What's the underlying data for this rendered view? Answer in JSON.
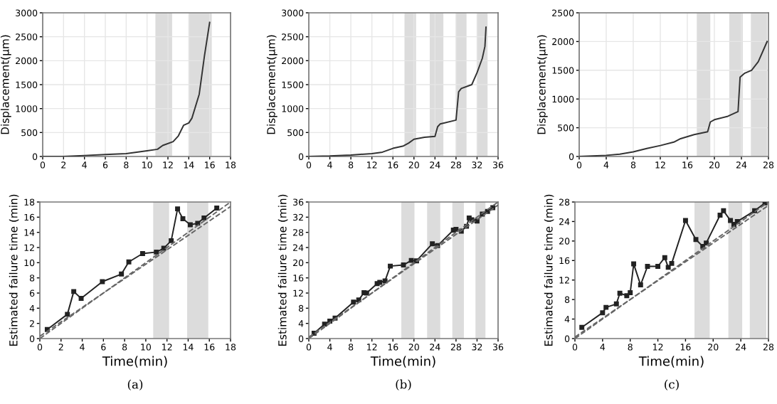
{
  "chart_data": [
    {
      "type": "line",
      "ylabel": "Displacement(μm)",
      "xlim": [
        0,
        18
      ],
      "ylim": [
        0,
        3000
      ],
      "xticks": [
        0,
        2,
        4,
        6,
        8,
        10,
        12,
        14,
        16,
        18
      ],
      "yticks": [
        0,
        500,
        1000,
        1500,
        2000,
        2500,
        3000
      ],
      "grid": true,
      "marker": "none",
      "line_style": "solid",
      "bands": [
        {
          "axis": "x",
          "from": 10.8,
          "to": 12.4,
          "color": "#dcdcdc"
        },
        {
          "axis": "x",
          "from": 14,
          "to": 16.2,
          "color": "#dcdcdc"
        }
      ],
      "series": [
        {
          "color": "#333333",
          "x": [
            0,
            2,
            4,
            6,
            8,
            9,
            10,
            11,
            11.5,
            12.5,
            13,
            13.5,
            14,
            14.3,
            15,
            15.5,
            16
          ],
          "values": [
            0,
            0,
            20,
            40,
            60,
            90,
            120,
            150,
            230,
            310,
            430,
            650,
            700,
            800,
            1300,
            2100,
            2800
          ]
        }
      ]
    },
    {
      "type": "line",
      "ylabel": "Displacement(μm)",
      "xlim": [
        0,
        36
      ],
      "ylim": [
        0,
        3000
      ],
      "xticks": [
        0,
        4,
        8,
        12,
        16,
        20,
        24,
        28,
        32,
        36
      ],
      "yticks": [
        0,
        500,
        1000,
        1500,
        2000,
        2500,
        3000
      ],
      "grid": true,
      "marker": "none",
      "line_style": "solid",
      "bands": [
        {
          "axis": "x",
          "from": 18.2,
          "to": 20.4,
          "color": "#dcdcdc"
        },
        {
          "axis": "x",
          "from": 23,
          "to": 25.6,
          "color": "#dcdcdc"
        },
        {
          "axis": "x",
          "from": 28,
          "to": 30,
          "color": "#dcdcdc"
        },
        {
          "axis": "x",
          "from": 32,
          "to": 34,
          "color": "#dcdcdc"
        }
      ],
      "series": [
        {
          "color": "#333333",
          "x": [
            0,
            4,
            8,
            12,
            14,
            16,
            18,
            19,
            20,
            22,
            24,
            24.5,
            25,
            28,
            28.5,
            29,
            31,
            32,
            33,
            33.5,
            33.7
          ],
          "values": [
            0,
            10,
            30,
            60,
            90,
            170,
            220,
            280,
            360,
            400,
            420,
            620,
            680,
            760,
            1350,
            1420,
            1500,
            1750,
            2050,
            2300,
            2700
          ]
        }
      ]
    },
    {
      "type": "line",
      "ylabel": "Displacement(μm)",
      "xlim": [
        0,
        28
      ],
      "ylim": [
        0,
        2500
      ],
      "xticks": [
        0,
        4,
        8,
        12,
        16,
        20,
        24,
        28
      ],
      "yticks": [
        0,
        500,
        1000,
        1500,
        2000,
        2500
      ],
      "grid": true,
      "marker": "none",
      "line_style": "solid",
      "bands": [
        {
          "axis": "x",
          "from": 17.4,
          "to": 19.4,
          "color": "#dcdcdc"
        },
        {
          "axis": "x",
          "from": 22.2,
          "to": 24.2,
          "color": "#dcdcdc"
        },
        {
          "axis": "x",
          "from": 25.4,
          "to": 27.8,
          "color": "#dcdcdc"
        }
      ],
      "series": [
        {
          "color": "#333333",
          "x": [
            0,
            4,
            6,
            8,
            10,
            12,
            14,
            15,
            17,
            19,
            19.4,
            20,
            22,
            23.5,
            23.8,
            24.5,
            25.5,
            26.5,
            27.8
          ],
          "values": [
            0,
            20,
            40,
            80,
            140,
            190,
            250,
            310,
            380,
            430,
            600,
            640,
            700,
            780,
            1380,
            1450,
            1500,
            1650,
            2000
          ]
        }
      ]
    },
    {
      "type": "line",
      "xlabel": "Time(min)",
      "ylabel": "Estimated failure time (min)",
      "annotations": [
        "(a)"
      ],
      "xlim": [
        0,
        18
      ],
      "ylim": [
        0,
        18
      ],
      "xticks": [
        0,
        2,
        4,
        6,
        8,
        10,
        12,
        14,
        16,
        18
      ],
      "yticks": [
        0,
        2,
        4,
        6,
        8,
        10,
        12,
        14,
        16,
        18
      ],
      "bands": [
        {
          "axis": "x",
          "from": 10.7,
          "to": 12.2,
          "color": "#dcdcdc"
        },
        {
          "axis": "x",
          "from": 13.9,
          "to": 15.9,
          "color": "#dcdcdc"
        }
      ],
      "series": [
        {
          "color": "#222222",
          "marker": "square",
          "line_style": "solid",
          "x": [
            0.7,
            2.6,
            3.2,
            3.9,
            5.9,
            7.7,
            8.4,
            9.7,
            11,
            11.7,
            12.4,
            13,
            13.5,
            14.2,
            14.9,
            15.5,
            16.7
          ],
          "values": [
            1.2,
            3.2,
            6.2,
            5.3,
            7.5,
            8.5,
            10.1,
            11.2,
            11.4,
            11.9,
            12.9,
            17.1,
            15.8,
            15,
            15.2,
            15.9,
            17.2
          ]
        },
        {
          "color": "#666666",
          "marker": "none",
          "line_style": "dashed",
          "x": [
            0,
            18
          ],
          "values": [
            0,
            18
          ]
        },
        {
          "color": "#666666",
          "marker": "none",
          "line_style": "dashed",
          "x": [
            0,
            18
          ],
          "values": [
            0.3,
            17.4
          ]
        }
      ]
    },
    {
      "type": "line",
      "xlabel": "Time(min)",
      "ylabel": "Estimated failure time (min)",
      "annotations": [
        "(b)"
      ],
      "xlim": [
        0,
        36
      ],
      "ylim": [
        0,
        36
      ],
      "xticks": [
        0,
        4,
        8,
        12,
        16,
        20,
        24,
        28,
        32,
        36
      ],
      "yticks": [
        0,
        4,
        8,
        12,
        16,
        20,
        24,
        28,
        32,
        36
      ],
      "bands": [
        {
          "axis": "x",
          "from": 17.6,
          "to": 20.1,
          "color": "#dcdcdc"
        },
        {
          "axis": "x",
          "from": 22.5,
          "to": 25,
          "color": "#dcdcdc"
        },
        {
          "axis": "x",
          "from": 27.3,
          "to": 29.5,
          "color": "#dcdcdc"
        },
        {
          "axis": "x",
          "from": 31.7,
          "to": 33.6,
          "color": "#dcdcdc"
        }
      ],
      "series": [
        {
          "color": "#222222",
          "marker": "square",
          "line_style": "solid",
          "x": [
            1,
            3,
            4,
            5,
            8.5,
            9.5,
            10.5,
            11,
            13,
            13.5,
            14.5,
            15.5,
            18,
            19.5,
            20.5,
            23.5,
            24.5,
            27.5,
            28,
            29,
            30,
            30.5,
            31,
            32,
            33,
            34,
            35
          ],
          "values": [
            1.4,
            3.8,
            4.6,
            5.4,
            9.6,
            10.2,
            12.1,
            12,
            14.5,
            14.8,
            15.2,
            19.1,
            19.4,
            20.6,
            20.5,
            25,
            24.5,
            28.6,
            28.8,
            28.3,
            29.6,
            31.8,
            31.3,
            31,
            32.8,
            33.5,
            34.5
          ]
        },
        {
          "color": "#666666",
          "marker": "none",
          "line_style": "dashed",
          "x": [
            0,
            36
          ],
          "values": [
            0,
            36
          ]
        },
        {
          "color": "#666666",
          "marker": "none",
          "line_style": "dashed",
          "x": [
            0,
            36
          ],
          "values": [
            0.4,
            35.2
          ]
        }
      ]
    },
    {
      "type": "line",
      "xlabel": "Time(min)",
      "ylabel": "Estimated failure time (min)",
      "annotations": [
        "(c)"
      ],
      "xlim": [
        0,
        28
      ],
      "ylim": [
        0,
        28
      ],
      "xticks": [
        0,
        4,
        8,
        12,
        16,
        20,
        24,
        28
      ],
      "yticks": [
        0,
        4,
        8,
        12,
        16,
        20,
        24,
        28
      ],
      "bands": [
        {
          "axis": "x",
          "from": 17.3,
          "to": 19.5,
          "color": "#dcdcdc"
        },
        {
          "axis": "x",
          "from": 22.2,
          "to": 24.2,
          "color": "#dcdcdc"
        },
        {
          "axis": "x",
          "from": 25.3,
          "to": 27.7,
          "color": "#dcdcdc"
        }
      ],
      "series": [
        {
          "color": "#222222",
          "marker": "square",
          "line_style": "solid",
          "x": [
            1,
            4,
            4.5,
            6,
            6.5,
            7.5,
            8,
            8.5,
            9.5,
            10.5,
            12,
            13,
            13.5,
            14,
            16,
            17.5,
            18.5,
            19,
            21,
            21.5,
            22.5,
            23,
            23.5,
            26,
            27.5
          ],
          "values": [
            2.3,
            5.3,
            6.4,
            7.1,
            9.3,
            8.8,
            9.4,
            15.3,
            11,
            14.8,
            14.8,
            16.6,
            14.6,
            15.4,
            24.2,
            20.3,
            18.9,
            19.6,
            25.3,
            26.2,
            24.2,
            23.4,
            24,
            26.2,
            27.8
          ]
        },
        {
          "color": "#666666",
          "marker": "none",
          "line_style": "dashed",
          "x": [
            0,
            28
          ],
          "values": [
            0,
            28
          ]
        },
        {
          "color": "#666666",
          "marker": "none",
          "line_style": "dashed",
          "x": [
            0,
            28
          ],
          "values": [
            0.3,
            27.3
          ]
        }
      ]
    }
  ]
}
